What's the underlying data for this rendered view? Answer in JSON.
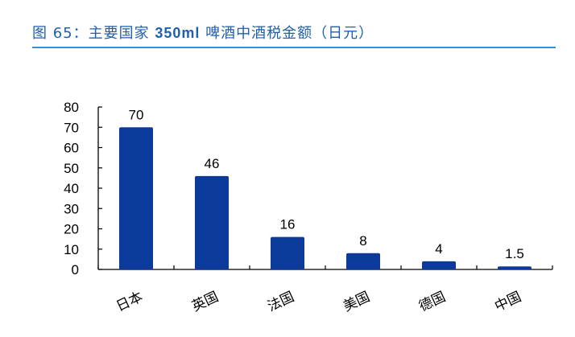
{
  "title": {
    "prefix": "图 65：主要国家 ",
    "bold": "350ml",
    "suffix": " 啤酒中酒税金额（日元）"
  },
  "colors": {
    "bar": "#0b3a9a",
    "title": "#1f5fae",
    "rule": "#3a8fd0"
  },
  "chart_data": {
    "type": "bar",
    "title": "图 65：主要国家 350ml 啤酒中酒税金额（日元）",
    "categories": [
      "日本",
      "英国",
      "法国",
      "美国",
      "德国",
      "中国"
    ],
    "values": [
      70,
      46,
      16,
      8,
      4,
      1.5
    ],
    "data_labels": [
      "70",
      "46",
      "16",
      "8",
      "4",
      "1.5"
    ],
    "xlabel": "",
    "ylabel": "",
    "ylim": [
      0,
      80
    ],
    "yticks": [
      0,
      10,
      20,
      30,
      40,
      50,
      60,
      70,
      80
    ],
    "grid": false,
    "legend": null
  }
}
